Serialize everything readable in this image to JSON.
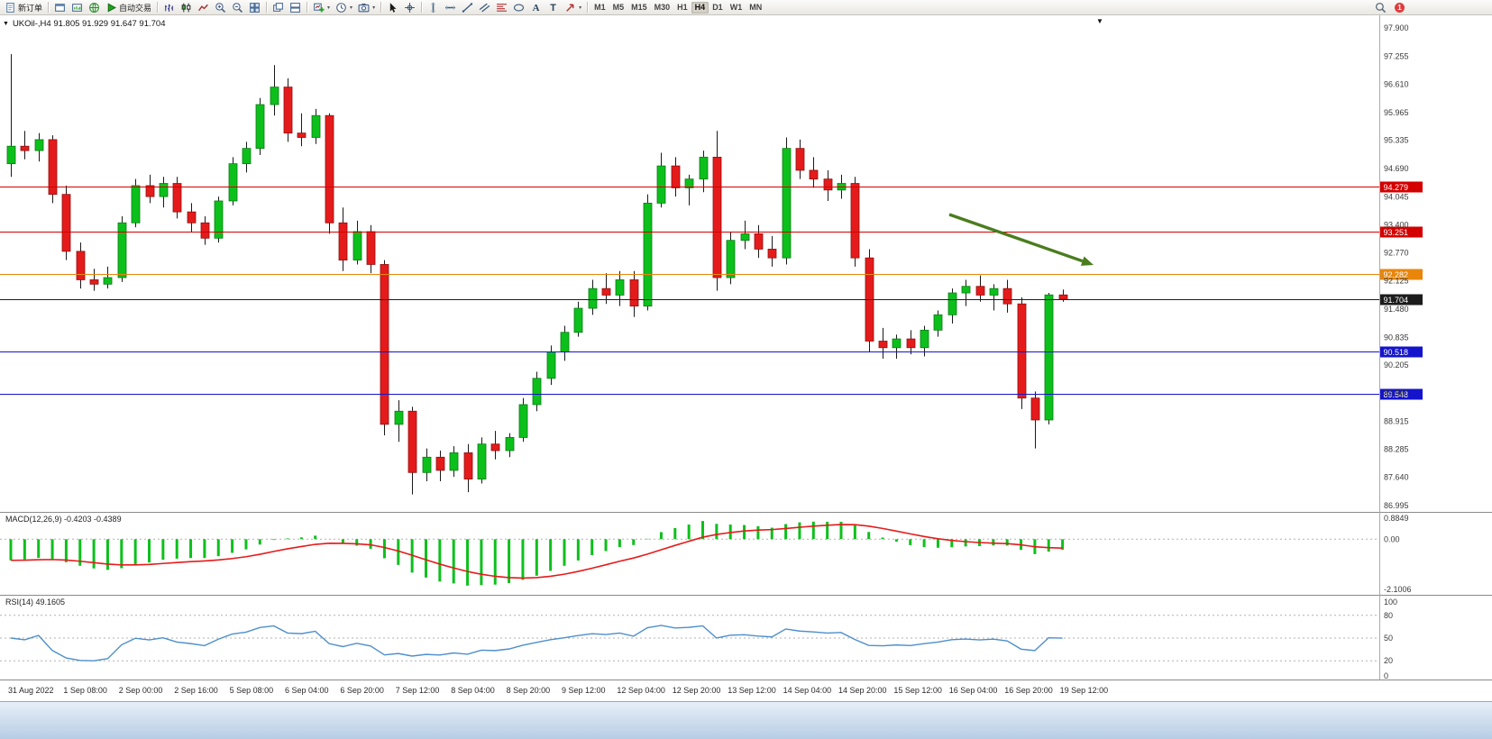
{
  "toolbar": {
    "groups": [
      {
        "items": [
          {
            "name": "new-order-button",
            "icon": "doc",
            "label": "新订单"
          }
        ]
      },
      {
        "items": [
          {
            "name": "chart-windows-button",
            "icon": "win"
          },
          {
            "name": "market-watch-button",
            "icon": "winbars"
          },
          {
            "name": "community-button",
            "icon": "globe"
          },
          {
            "name": "auto-trading-button",
            "icon": "play",
            "label": "自动交易"
          }
        ]
      },
      {
        "items": [
          {
            "name": "bar-chart-button",
            "icon": "bars"
          },
          {
            "name": "candlestick-chart-button",
            "icon": "candles"
          },
          {
            "name": "line-chart-button",
            "icon": "linechart"
          },
          {
            "name": "zoom-in-button",
            "icon": "zoomin"
          },
          {
            "name": "zoom-out-button",
            "icon": "zoomout"
          },
          {
            "name": "tile-windows-button",
            "icon": "tile"
          }
        ]
      },
      {
        "items": [
          {
            "name": "cascade-windows-button",
            "icon": "cascade"
          },
          {
            "name": "arrange-windows-button",
            "icon": "tile2"
          }
        ]
      },
      {
        "items": [
          {
            "name": "new-chart-button",
            "icon": "newchart",
            "caret": true
          },
          {
            "name": "periods-button",
            "icon": "clock",
            "caret": true
          },
          {
            "name": "templates-button",
            "icon": "camera",
            "caret": true
          }
        ]
      },
      {
        "items": [
          {
            "name": "cursor-button",
            "icon": "cursor"
          },
          {
            "name": "crosshair-button",
            "icon": "crosshair"
          }
        ]
      },
      {
        "items": [
          {
            "name": "vertical-line-button",
            "icon": "vline"
          },
          {
            "name": "horizontal-line-button",
            "icon": "hline"
          },
          {
            "name": "trendline-button",
            "icon": "trend"
          },
          {
            "name": "equidistant-channel-button",
            "icon": "channel"
          },
          {
            "name": "fibonacci-button",
            "icon": "fibo"
          },
          {
            "name": "shapes-button",
            "icon": "shapes"
          },
          {
            "name": "text-button",
            "icon": "textA"
          },
          {
            "name": "text-label-button",
            "icon": "textT"
          },
          {
            "name": "arrows-button",
            "icon": "arrowsym",
            "caret": true
          }
        ]
      }
    ],
    "timeframes": {
      "items": [
        "M1",
        "M5",
        "M15",
        "M30",
        "H1",
        "H4",
        "D1",
        "W1",
        "MN"
      ],
      "active": "H4"
    },
    "right": {
      "notification_count": "1"
    }
  },
  "chart_data": {
    "type": "candlestick",
    "symbol": "UKOil-",
    "timeframe": "H4",
    "quote_line": "UKOil-,H4 91.805 91.929 91.647 91.704",
    "ohlc_display": {
      "open": "91.805",
      "high": "91.929",
      "low": "91.647",
      "close": "91.704"
    },
    "y_axis_labels": [
      "97.900",
      "97.255",
      "96.610",
      "95.965",
      "95.335",
      "94.690",
      "94.045",
      "93.400",
      "92.770",
      "92.125",
      "91.480",
      "90.835",
      "90.205",
      "89.560",
      "88.915",
      "88.285",
      "87.640",
      "86.995"
    ],
    "time_labels": [
      "31 Aug 2022",
      "1 Sep 08:00",
      "2 Sep 00:00",
      "2 Sep 16:00",
      "5 Sep 08:00",
      "6 Sep 04:00",
      "6 Sep 20:00",
      "7 Sep 12:00",
      "8 Sep 04:00",
      "8 Sep 20:00",
      "9 Sep 12:00",
      "12 Sep 04:00",
      "12 Sep 20:00",
      "13 Sep 12:00",
      "14 Sep 04:00",
      "14 Sep 20:00",
      "15 Sep 12:00",
      "16 Sep 04:00",
      "16 Sep 20:00",
      "19 Sep 12:00"
    ],
    "axis_range": {
      "max": 97.9,
      "min": 86.995
    },
    "candles": [
      [
        94.8,
        97.3,
        94.5,
        95.2
      ],
      [
        95.2,
        95.55,
        94.9,
        95.1
      ],
      [
        95.1,
        95.5,
        94.85,
        95.35
      ],
      [
        95.35,
        95.45,
        93.9,
        94.1
      ],
      [
        94.1,
        94.3,
        92.6,
        92.8
      ],
      [
        92.8,
        93.0,
        91.95,
        92.15
      ],
      [
        92.15,
        92.4,
        91.9,
        92.05
      ],
      [
        92.05,
        92.45,
        91.95,
        92.2
      ],
      [
        92.2,
        93.6,
        92.1,
        93.45
      ],
      [
        93.45,
        94.45,
        93.35,
        94.3
      ],
      [
        94.3,
        94.55,
        93.9,
        94.05
      ],
      [
        94.05,
        94.5,
        93.8,
        94.35
      ],
      [
        94.35,
        94.5,
        93.55,
        93.7
      ],
      [
        93.7,
        93.9,
        93.25,
        93.45
      ],
      [
        93.45,
        93.6,
        92.95,
        93.1
      ],
      [
        93.1,
        94.05,
        93.0,
        93.95
      ],
      [
        93.95,
        94.95,
        93.85,
        94.8
      ],
      [
        94.8,
        95.3,
        94.6,
        95.15
      ],
      [
        95.15,
        96.3,
        95.0,
        96.15
      ],
      [
        96.15,
        97.05,
        95.9,
        96.55
      ],
      [
        96.55,
        96.75,
        95.3,
        95.5
      ],
      [
        95.5,
        95.95,
        95.2,
        95.4
      ],
      [
        95.4,
        96.05,
        95.25,
        95.9
      ],
      [
        95.9,
        95.95,
        93.2,
        93.45
      ],
      [
        93.45,
        93.8,
        92.35,
        92.6
      ],
      [
        92.6,
        93.5,
        92.5,
        93.25
      ],
      [
        93.25,
        93.4,
        92.3,
        92.5
      ],
      [
        92.5,
        92.6,
        88.6,
        88.85
      ],
      [
        88.85,
        89.4,
        88.45,
        89.15
      ],
      [
        89.15,
        89.25,
        87.25,
        87.75
      ],
      [
        87.75,
        88.3,
        87.55,
        88.1
      ],
      [
        88.1,
        88.25,
        87.55,
        87.8
      ],
      [
        87.8,
        88.35,
        87.65,
        88.2
      ],
      [
        88.2,
        88.4,
        87.3,
        87.6
      ],
      [
        87.6,
        88.55,
        87.5,
        88.4
      ],
      [
        88.4,
        88.7,
        88.05,
        88.25
      ],
      [
        88.25,
        88.65,
        88.1,
        88.55
      ],
      [
        88.55,
        89.45,
        88.45,
        89.3
      ],
      [
        89.3,
        90.05,
        89.15,
        89.9
      ],
      [
        89.9,
        90.65,
        89.75,
        90.5
      ],
      [
        90.5,
        91.1,
        90.3,
        90.95
      ],
      [
        90.95,
        91.65,
        90.85,
        91.5
      ],
      [
        91.5,
        92.15,
        91.35,
        91.95
      ],
      [
        91.95,
        92.3,
        91.6,
        91.8
      ],
      [
        91.8,
        92.35,
        91.55,
        92.15
      ],
      [
        92.15,
        92.35,
        91.3,
        91.55
      ],
      [
        91.55,
        94.1,
        91.45,
        93.9
      ],
      [
        93.9,
        95.05,
        93.8,
        94.75
      ],
      [
        94.75,
        94.95,
        94.05,
        94.25
      ],
      [
        94.25,
        94.55,
        93.85,
        94.45
      ],
      [
        94.45,
        95.1,
        94.15,
        94.95
      ],
      [
        94.95,
        95.55,
        91.9,
        92.2
      ],
      [
        92.2,
        93.25,
        92.05,
        93.05
      ],
      [
        93.05,
        93.5,
        92.85,
        93.2
      ],
      [
        93.2,
        93.4,
        92.65,
        92.85
      ],
      [
        92.85,
        93.15,
        92.45,
        92.65
      ],
      [
        92.65,
        95.4,
        92.5,
        95.15
      ],
      [
        95.15,
        95.35,
        94.45,
        94.65
      ],
      [
        94.65,
        94.95,
        94.25,
        94.45
      ],
      [
        94.45,
        94.65,
        93.95,
        94.2
      ],
      [
        94.2,
        94.55,
        94.0,
        94.35
      ],
      [
        94.35,
        94.5,
        92.45,
        92.65
      ],
      [
        92.65,
        92.85,
        90.5,
        90.75
      ],
      [
        90.75,
        91.05,
        90.35,
        90.6
      ],
      [
        90.6,
        90.9,
        90.35,
        90.8
      ],
      [
        90.8,
        91.0,
        90.45,
        90.6
      ],
      [
        90.6,
        91.1,
        90.4,
        91.0
      ],
      [
        91.0,
        91.45,
        90.85,
        91.35
      ],
      [
        91.35,
        91.95,
        91.15,
        91.85
      ],
      [
        91.85,
        92.15,
        91.55,
        92.0
      ],
      [
        92.0,
        92.25,
        91.65,
        91.8
      ],
      [
        91.8,
        92.05,
        91.45,
        91.95
      ],
      [
        91.95,
        92.15,
        91.4,
        91.6
      ],
      [
        91.6,
        91.75,
        89.2,
        89.45
      ],
      [
        89.45,
        89.6,
        88.3,
        88.95
      ],
      [
        88.95,
        91.85,
        88.85,
        91.805
      ],
      [
        91.805,
        91.929,
        91.647,
        91.704
      ]
    ],
    "levels": [
      {
        "value": 94.279,
        "label": "94.279",
        "color": "#d40000",
        "current": false
      },
      {
        "value": 93.251,
        "label": "93.251",
        "color": "#d40000",
        "current": false
      },
      {
        "value": 92.282,
        "label": "92.282",
        "color": "#e8860c",
        "current": false
      },
      {
        "value": 91.704,
        "label": "91.704",
        "color": "#1c1c1c",
        "current": true
      },
      {
        "value": 90.518,
        "label": "90.518",
        "color": "#1414cc",
        "current": false
      },
      {
        "value": 89.548,
        "label": "89.548",
        "color": "#1414cc",
        "current": false
      }
    ],
    "indicators": [
      {
        "name": "MACD",
        "params": "12,26,9",
        "values": "-0.4203 -0.4389",
        "label": "MACD(12,26,9) -0.4203 -0.4389",
        "axis_labels": [
          "0.8849",
          "0.00",
          "-2.1006"
        ],
        "histogram_color": "#0cc01c",
        "signal_color": "#e51b1b"
      },
      {
        "name": "RSI",
        "params": "14",
        "values": "49.1605",
        "label": "RSI(14) 49.1605",
        "axis_labels": [
          "100",
          "80",
          "50",
          "20",
          "0"
        ],
        "levels": [
          80,
          50,
          20
        ],
        "line_color": "#4d8fcc"
      }
    ],
    "annotation_arrow": {
      "from": [
        1053,
        238
      ],
      "to": [
        1213,
        294
      ],
      "color": "#4a7d1e"
    }
  }
}
